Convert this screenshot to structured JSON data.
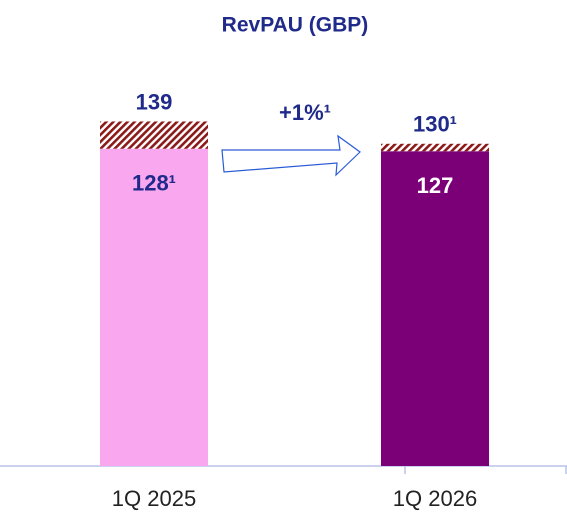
{
  "chart_data": {
    "type": "bar",
    "stacked": true,
    "title": "RevPAU (GBP)",
    "categories": [
      "1Q 2025",
      "1Q 2026"
    ],
    "series": [
      {
        "colors": [
          "#f9a8f0",
          "#7b0077"
        ],
        "values": [
          128,
          127
        ],
        "value_labels": [
          "128¹",
          "127"
        ]
      },
      {
        "color": "#8b1a1a",
        "hatch": true,
        "values": [
          11,
          3
        ]
      }
    ],
    "totals": [
      139,
      130
    ],
    "total_labels": [
      "139",
      "130¹"
    ],
    "annotation": "+1%¹",
    "ylim": [
      0,
      140
    ]
  }
}
